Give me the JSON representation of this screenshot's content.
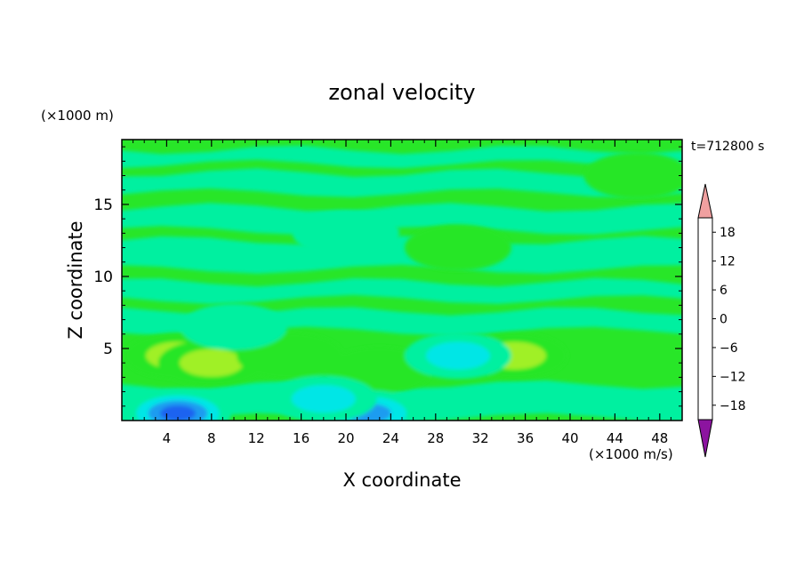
{
  "chart_data": {
    "type": "heatmap",
    "title": "zonal velocity",
    "xlabel": "X coordinate",
    "ylabel": "Z coordinate",
    "y_unit_label": "(×1000 m)",
    "x_unit_label": "(×1000 m/s)",
    "time_label": "t=712800 s",
    "xlim": [
      0,
      50
    ],
    "ylim": [
      0,
      19.5
    ],
    "x_ticks": [
      4,
      8,
      12,
      16,
      20,
      24,
      28,
      32,
      36,
      40,
      44,
      48
    ],
    "y_ticks": [
      5,
      10,
      15
    ],
    "colorbar": {
      "levels": [
        -21,
        -18,
        -15,
        -12,
        -9,
        -6,
        -3,
        0,
        3,
        6,
        9,
        12,
        15,
        18,
        21
      ],
      "tick_labels": [
        "18",
        "12",
        "6",
        "0",
        "−6",
        "−12",
        "−18"
      ],
      "tick_values": [
        18,
        12,
        6,
        0,
        -6,
        -12,
        -18
      ],
      "colors": [
        "#4b0082",
        "#1c1ca8",
        "#1c3cd8",
        "#1e64f0",
        "#1e9cf0",
        "#00e6e6",
        "#00f0a0",
        "#28e628",
        "#a0f028",
        "#f0f000",
        "#f0c000",
        "#f09600",
        "#f06400",
        "#f03c00",
        "#e61e1e"
      ],
      "under_color": "#8c14a0",
      "over_color": "#f0a0a0"
    },
    "field_description": [
      {
        "x": 5,
        "z": 4.5,
        "value": 7
      },
      {
        "x": 8,
        "z": 4,
        "value": 7
      },
      {
        "x": 15,
        "z": 4.5,
        "value": 4
      },
      {
        "x": 23,
        "z": 3.5,
        "value": 4
      },
      {
        "x": 35,
        "z": 4.5,
        "value": 5
      },
      {
        "x": 5,
        "z": 0.5,
        "value": -12
      },
      {
        "x": 22,
        "z": 0.5,
        "value": -10
      },
      {
        "x": 30,
        "z": 4.5,
        "value": -5
      },
      {
        "x": 18,
        "z": 1.5,
        "value": -6
      },
      {
        "x": 10,
        "z": 6.5,
        "value": -4
      },
      {
        "x": 20,
        "z": 13,
        "value": -2
      },
      {
        "x": 30,
        "z": 12,
        "value": 3
      },
      {
        "x": 46,
        "z": 17,
        "value": 3
      }
    ]
  }
}
